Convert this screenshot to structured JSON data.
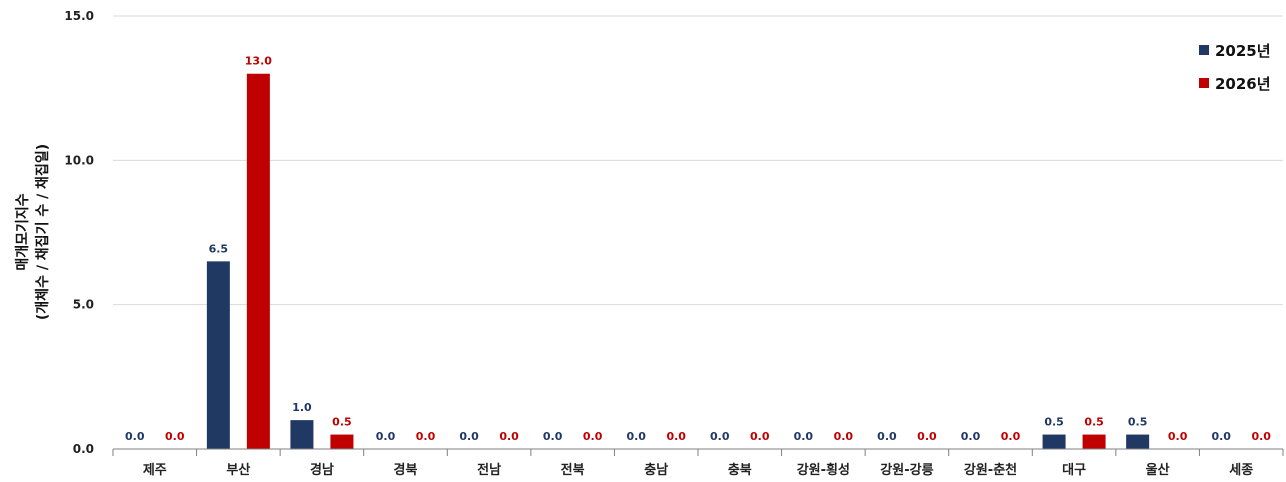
{
  "chart_data": {
    "type": "bar",
    "categories": [
      "제주",
      "부산",
      "경남",
      "경북",
      "전남",
      "전북",
      "충남",
      "충북",
      "강원-횡성",
      "강원-강릉",
      "강원-춘천",
      "대구",
      "울산",
      "세종"
    ],
    "series": [
      {
        "name": "2025년",
        "color": "#1f3864",
        "values": [
          0.0,
          6.5,
          1.0,
          0.0,
          0.0,
          0.0,
          0.0,
          0.0,
          0.0,
          0.0,
          0.0,
          0.5,
          0.5,
          0.0
        ],
        "labels": [
          "0.0",
          "6.5",
          "1.0",
          "0.0",
          "0.0",
          "0.0",
          "0.0",
          "0.0",
          "0.0",
          "0.0",
          "0.0",
          "0.5",
          "0.5",
          "0.0"
        ]
      },
      {
        "name": "2026년",
        "color": "#c00000",
        "values": [
          0.0,
          13.0,
          0.5,
          0.0,
          0.0,
          0.0,
          0.0,
          0.0,
          0.0,
          0.0,
          0.0,
          0.5,
          0.0,
          0.0
        ],
        "labels": [
          "0.0",
          "13.0",
          "0.5",
          "0.0",
          "0.0",
          "0.0",
          "0.0",
          "0.0",
          "0.0",
          "0.0",
          "0.0",
          "0.5",
          "0.0",
          "0.0"
        ]
      }
    ],
    "ylabel_line1": "매개모기지수",
    "ylabel_line2": "(개체수 / 채집기 수 / 채집일)",
    "ylim": [
      0,
      15
    ],
    "yticks": [
      "0.0",
      "5.0",
      "10.0",
      "15.0"
    ],
    "ytick_values": [
      0,
      5,
      10,
      15
    ],
    "grid": true,
    "legend_position": "top-right"
  }
}
